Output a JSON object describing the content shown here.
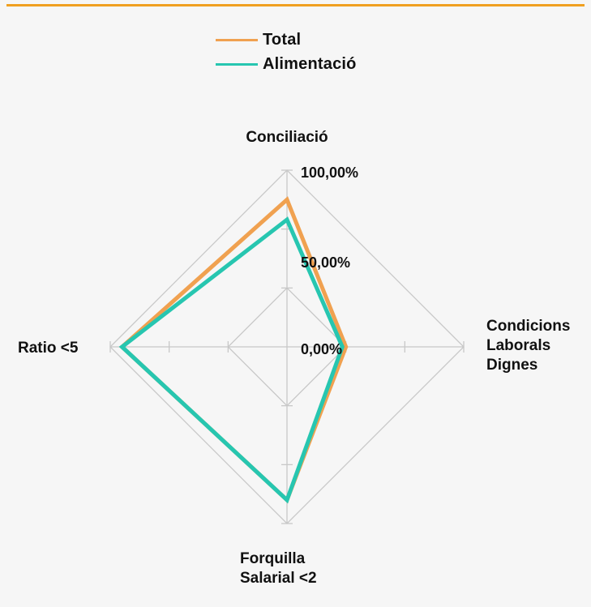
{
  "colors": {
    "total": "#f0a150",
    "alimentacio": "#27c6b0",
    "grid": "#c8c8c8",
    "accent_rule": "#f0a020"
  },
  "legend": {
    "items": [
      {
        "label": "Total",
        "color": "#f0a150"
      },
      {
        "label": "Alimentació",
        "color": "#27c6b0"
      }
    ]
  },
  "chart_data": {
    "type": "radar",
    "axes": [
      {
        "label_lines": [
          "Conciliació"
        ]
      },
      {
        "label_lines": [
          "Condicions",
          "Laborals",
          "Dignes"
        ]
      },
      {
        "label_lines": [
          "Forquilla",
          "Salarial <2"
        ]
      },
      {
        "label_lines": [
          "Ratio <5"
        ]
      }
    ],
    "ticks": [
      "0,00%",
      "50,00%",
      "100,00%"
    ],
    "range": [
      -50,
      100
    ],
    "grid": true,
    "legend_position": "top",
    "series": [
      {
        "name": "Total",
        "values": [
          75,
          0,
          80,
          90
        ]
      },
      {
        "name": "Alimentació",
        "values": [
          58,
          -3,
          80,
          90
        ]
      }
    ]
  }
}
